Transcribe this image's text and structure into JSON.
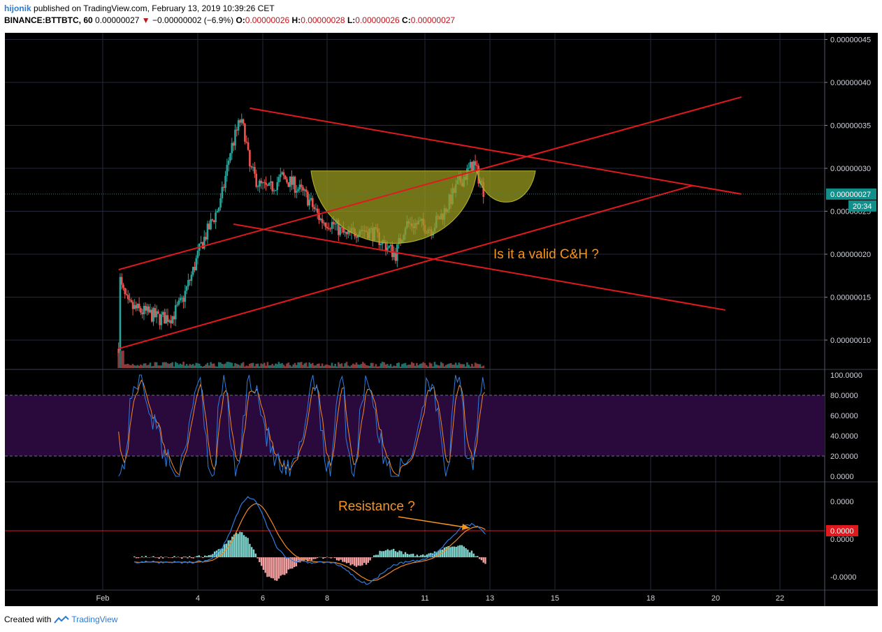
{
  "header": {
    "author": "hijonik",
    "published_text": "published on TradingView.com, February 13, 2019 10:39:26 CET",
    "symbol": "BINANCE:BTTBTC, 60",
    "last": "0.00000027",
    "change": "−0.00000002 (−6.9%)",
    "o_label": "O:",
    "o_value": "0.00000026",
    "h_label": "H:",
    "h_value": "0.00000028",
    "l_label": "L:",
    "l_value": "0.00000026",
    "c_label": "C:",
    "c_value": "0.00000027"
  },
  "footer": {
    "created_with": "Created with",
    "brand": "TradingView"
  },
  "colors": {
    "background": "#000000",
    "grid": "#262a3a",
    "trendline": "#e0191e",
    "bull": "#26a69a",
    "bear": "#ef5350",
    "cup_fill": "#9a9a20",
    "cup_stroke": "#b6b62c",
    "annotation": "#f7941d",
    "price_badge": "#138f8b",
    "stoch_band": "#2a0a3c",
    "stoch_k": "#2e7de0",
    "stoch_d": "#f08a24",
    "zero_line_badge": "#e0191e"
  },
  "chart_data": {
    "type": "candlestick",
    "xaxis": {
      "tick_labels": [
        "Feb",
        "4",
        "6",
        "8",
        "11",
        "13",
        "15",
        "18",
        "20",
        "22"
      ]
    },
    "price_axis": {
      "tick_labels": [
        "0.00000045",
        "0.00000040",
        "0.00000035",
        "0.00000030",
        "0.00000025",
        "0.00000020",
        "0.00000015",
        "0.00000010"
      ],
      "ticks": [
        4.5e-07,
        4e-07,
        3.5e-07,
        3e-07,
        2.5e-07,
        2e-07,
        1.5e-07,
        1e-07
      ],
      "ylim": [
        8.3e-08,
        4.7e-07
      ],
      "current_price_label": "0.00000027",
      "current_price": 2.7e-07,
      "countdown": "20:34"
    },
    "price_path": [
      [
        0.5,
        9e-08
      ],
      [
        0.52,
        1.75e-07
      ],
      [
        0.6,
        1.6e-07
      ],
      [
        0.8,
        1.4e-07
      ],
      [
        1.1,
        1.35e-07
      ],
      [
        1.5,
        1.3e-07
      ],
      [
        1.8,
        1.25e-07
      ],
      [
        2.2,
        1.28e-07
      ],
      [
        2.5,
        1.45e-07
      ],
      [
        2.8,
        1.75e-07
      ],
      [
        3.1,
        2.1e-07
      ],
      [
        3.4,
        2.35e-07
      ],
      [
        3.7,
        2.6e-07
      ],
      [
        4.0,
        3.2e-07
      ],
      [
        4.3,
        3.55e-07
      ],
      [
        4.45,
        3.4e-07
      ],
      [
        4.6,
        3e-07
      ],
      [
        4.9,
        2.8e-07
      ],
      [
        5.2,
        2.75e-07
      ],
      [
        5.6,
        2.9e-07
      ],
      [
        6.0,
        2.8e-07
      ],
      [
        6.4,
        2.65e-07
      ],
      [
        6.8,
        2.4e-07
      ],
      [
        7.2,
        2.35e-07
      ],
      [
        7.6,
        2.2e-07
      ],
      [
        8.0,
        2.3e-07
      ],
      [
        8.4,
        2.25e-07
      ],
      [
        8.8,
        2.1e-07
      ],
      [
        9.1,
        2e-07
      ],
      [
        9.4,
        2.35e-07
      ],
      [
        9.8,
        2.35e-07
      ],
      [
        10.2,
        2.3e-07
      ],
      [
        10.6,
        2.5e-07
      ],
      [
        11.0,
        2.8e-07
      ],
      [
        11.3,
        2.95e-07
      ],
      [
        11.5,
        3.05e-07
      ],
      [
        11.7,
        2.85e-07
      ],
      [
        11.85,
        2.7e-07
      ]
    ],
    "volume_scale": "relative",
    "trendlines": [
      {
        "name": "descending-upper",
        "from": [
          4.6,
          3.7e-07
        ],
        "to": [
          19.8,
          2.7e-07
        ]
      },
      {
        "name": "descending-lower",
        "from": [
          4.1,
          2.35e-07
        ],
        "to": [
          19.3,
          1.35e-07
        ]
      },
      {
        "name": "ascending-lower",
        "from": [
          0.5,
          9e-08
        ],
        "to": [
          18.3,
          2.8e-07
        ]
      },
      {
        "name": "ascending-upper",
        "from": [
          0.5,
          1.82e-07
        ],
        "to": [
          19.8,
          3.83e-07
        ]
      }
    ],
    "cup_handle": {
      "rim_level": 2.97e-07,
      "cup_start": 6.5,
      "cup_end": 11.6,
      "cup_bottom": 2.17e-07,
      "handle_end": 13.4,
      "handle_bottom": 2.55e-07
    },
    "stochastic": {
      "tick_labels": [
        "100.0000",
        "80.0000",
        "60.0000",
        "40.0000",
        "20.0000",
        "0.0000"
      ],
      "ticks": [
        100,
        80,
        60,
        40,
        20,
        0
      ],
      "band": [
        20,
        80
      ]
    },
    "macd": {
      "tick_labels": [
        "0.0000",
        "0.0000",
        "-0.0000"
      ],
      "zero_badge_label": "0.0000",
      "ylim": [
        -1.2,
        1.5
      ]
    },
    "annotations": [
      {
        "text": "Is it a valid C&H ?"
      },
      {
        "text": "Resistance ?"
      }
    ]
  }
}
